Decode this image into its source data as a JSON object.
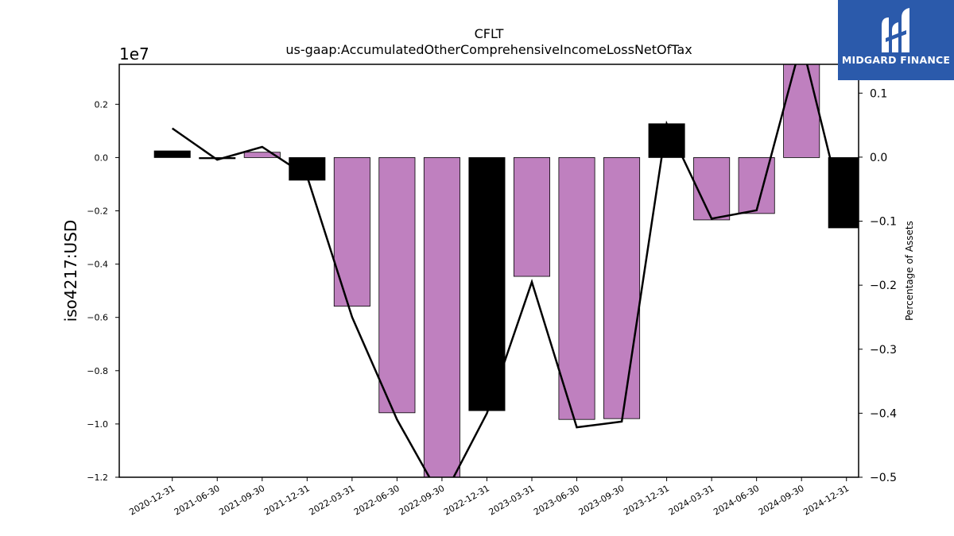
{
  "chart_data": {
    "type": "bar",
    "title": "CFLT",
    "subtitle": "us-gaap:AccumulatedOtherComprehensiveIncomeLossNetOfTax",
    "ylabel": "iso4217:USD",
    "y2label": "Percentage of Assets",
    "y_offset_label": "1e7",
    "categories": [
      "2020-12-31",
      "2021-06-30",
      "2021-09-30",
      "2021-12-31",
      "2022-03-31",
      "2022-06-30",
      "2022-09-30",
      "2022-12-31",
      "2023-03-31",
      "2023-06-30",
      "2023-09-30",
      "2023-12-31",
      "2024-03-31",
      "2024-06-30",
      "2024-09-30",
      "2024-12-31"
    ],
    "series": [
      {
        "values": [
          250000,
          -30000,
          200000,
          -850000,
          -5580000,
          -9580000,
          -12100000,
          -9500000,
          -4460000,
          -9830000,
          -9800000,
          1270000,
          -2340000,
          -2100000,
          3600000,
          -2640000
        ],
        "bar_colors": [
          "#000000",
          "#000000",
          "#bf80bf",
          "#000000",
          "#bf80bf",
          "#bf80bf",
          "#bf80bf",
          "#000000",
          "#bf80bf",
          "#bf80bf",
          "#bf80bf",
          "#000000",
          "#bf80bf",
          "#bf80bf",
          "#bf80bf",
          "#000000"
        ]
      },
      {
        "axis": "right",
        "values": [
          0.045,
          -0.004,
          0.016,
          -0.03,
          -0.25,
          -0.41,
          -0.535,
          -0.4,
          -0.195,
          -0.422,
          -0.413,
          0.052,
          -0.096,
          -0.083,
          0.18,
          -0.105
        ],
        "color": "#000000"
      }
    ],
    "ylim": [
      -12000000,
      3500000
    ],
    "y2lim": [
      -0.5,
      0.145
    ],
    "yticks": [
      -12000000,
      -10000000,
      -8000000,
      -6000000,
      -4000000,
      -2000000,
      0,
      2000000
    ],
    "ytick_labels": [
      "−1.2",
      "−1.0",
      "−0.8",
      "−0.6",
      "−0.4",
      "−0.2",
      "0.0",
      "0.2"
    ],
    "y2ticks": [
      -0.5,
      -0.4,
      -0.3,
      -0.2,
      -0.1,
      0.0,
      0.1
    ],
    "y2tick_labels": [
      "−0.5",
      "−0.4",
      "−0.3",
      "−0.2",
      "−0.1",
      "0.0",
      "0.1"
    ],
    "grid": false
  },
  "logo": {
    "text": "MIDGARD FINANCE",
    "color": "#2b5aab"
  }
}
